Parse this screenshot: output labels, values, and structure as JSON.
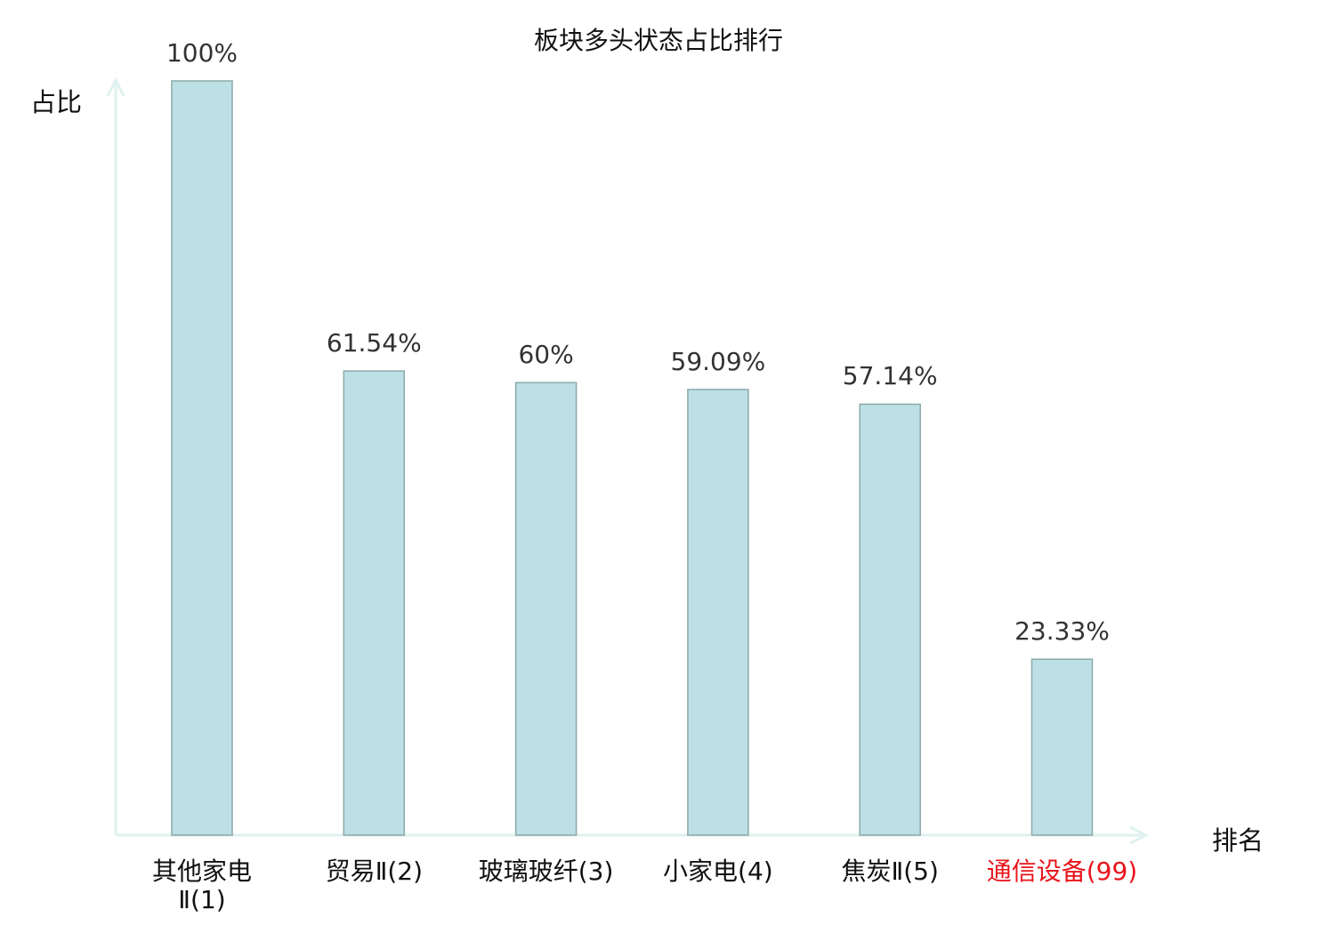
{
  "chart_data": {
    "type": "bar",
    "title": "板块多头状态占比排行",
    "xlabel": "排名",
    "ylabel": "占比",
    "categories": [
      "其他家电Ⅱ(1)",
      "贸易Ⅱ(2)",
      "玻璃玻纤(3)",
      "小家电(4)",
      "焦炭Ⅱ(5)",
      "通信设备(99)"
    ],
    "values": [
      100,
      61.54,
      60,
      59.09,
      57.14,
      23.33
    ],
    "data_labels": [
      "100%",
      "61.54%",
      "60%",
      "59.09%",
      "57.14%",
      "23.33%"
    ],
    "ylim": [
      0,
      100
    ],
    "grid": false,
    "highlight_index": 5,
    "colors": {
      "bar_fill": "#bce0e3",
      "bar_stroke": "#8aa9aa",
      "axis": "#dff2ef",
      "highlight_label": "#e8141b"
    }
  }
}
